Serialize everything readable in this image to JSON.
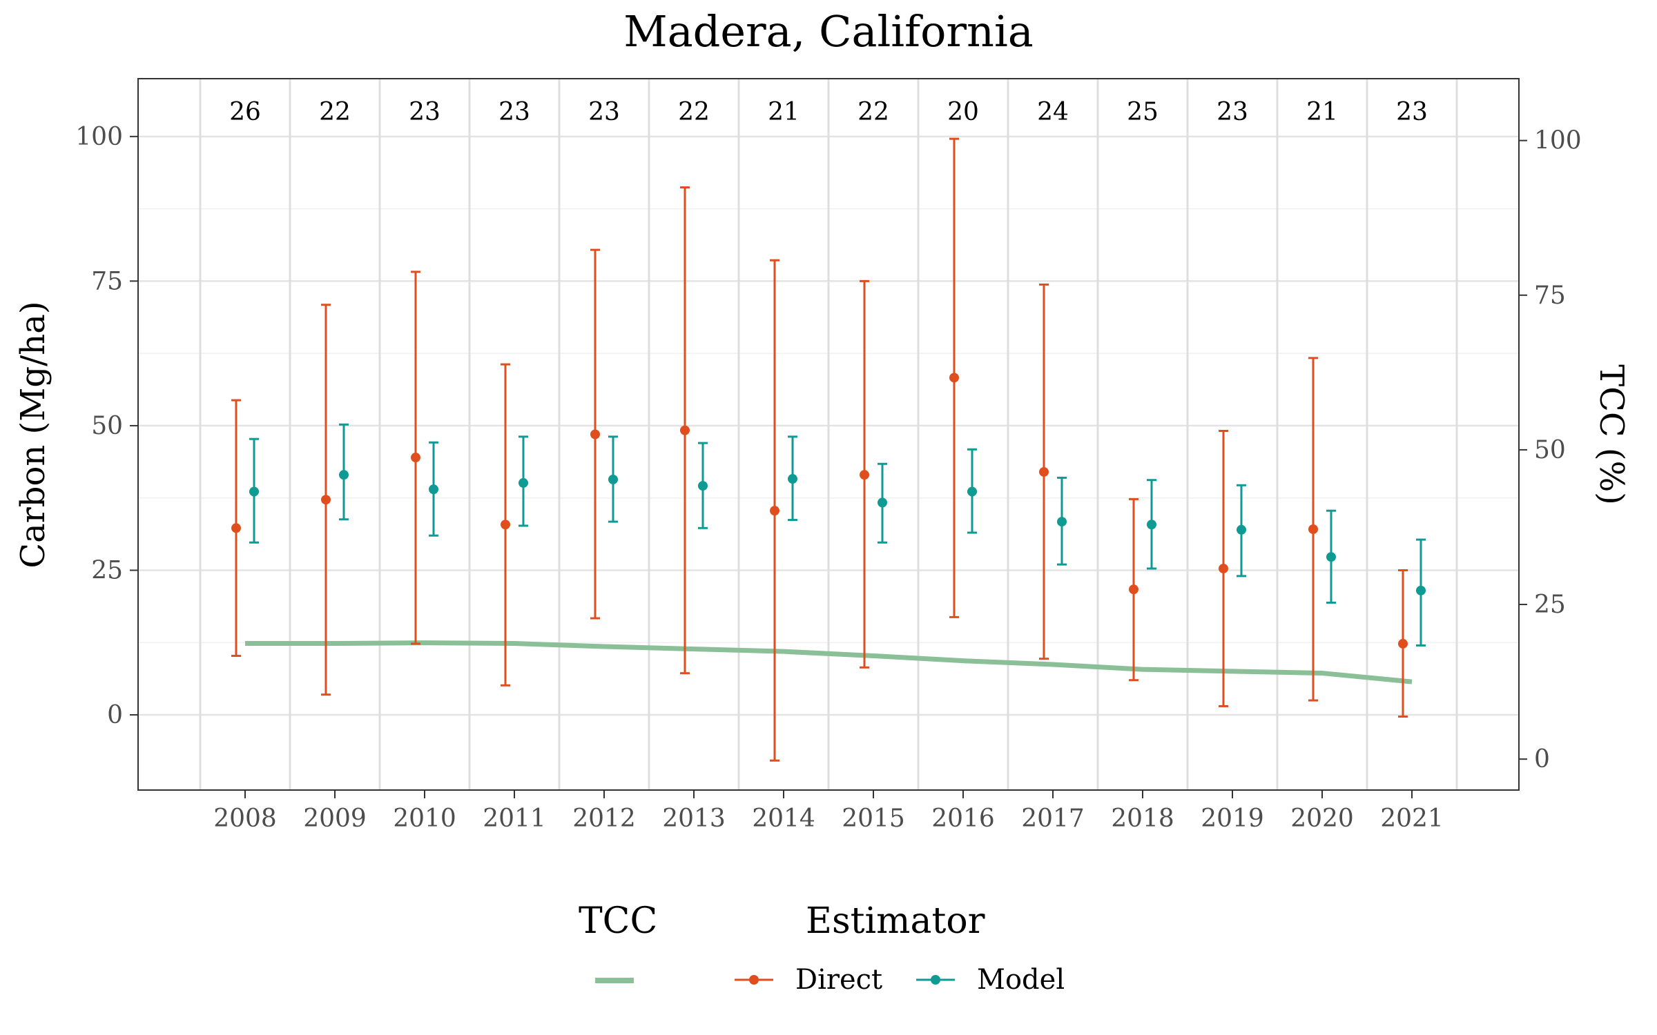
{
  "chart_data": {
    "type": "line",
    "title": "Madera, California",
    "xlabel": "",
    "ylabel": "Carbon (Mg/ha)",
    "y2label": "TCC (%)",
    "categories": [
      "2008",
      "2009",
      "2010",
      "2011",
      "2012",
      "2013",
      "2014",
      "2015",
      "2016",
      "2017",
      "2018",
      "2019",
      "2020",
      "2021"
    ],
    "ylim": [
      -13,
      110
    ],
    "yticks": [
      0,
      25,
      50,
      75,
      100
    ],
    "y2lim": [
      -5,
      110
    ],
    "y2ticks": [
      0,
      25,
      50,
      75,
      100
    ],
    "grid": true,
    "legend_position": "bottom",
    "counts": [
      26,
      22,
      23,
      23,
      23,
      22,
      21,
      22,
      20,
      24,
      25,
      23,
      21,
      23
    ],
    "series": [
      {
        "name": "Direct",
        "legend_group": "Estimator",
        "color": "#e04e1d",
        "kind": "pointrange",
        "values": [
          32.3,
          37.2,
          44.5,
          32.9,
          48.5,
          49.2,
          35.3,
          41.5,
          58.3,
          42.0,
          21.7,
          25.3,
          32.1,
          12.3
        ],
        "lower": [
          10.2,
          3.5,
          12.3,
          5.1,
          16.7,
          7.2,
          -7.9,
          8.2,
          16.9,
          9.7,
          6.0,
          1.5,
          2.5,
          -0.3
        ],
        "upper": [
          54.4,
          70.9,
          76.6,
          60.6,
          80.4,
          91.2,
          78.6,
          75.0,
          99.6,
          74.4,
          37.3,
          49.1,
          61.7,
          25.0
        ]
      },
      {
        "name": "Model",
        "legend_group": "Estimator",
        "color": "#0f9a94",
        "kind": "pointrange",
        "values": [
          38.6,
          41.5,
          39.0,
          40.1,
          40.7,
          39.6,
          40.8,
          36.7,
          38.6,
          33.4,
          32.9,
          32.0,
          27.3,
          21.5
        ],
        "lower": [
          29.8,
          33.8,
          31.0,
          32.7,
          33.4,
          32.3,
          33.7,
          29.8,
          31.5,
          26.0,
          25.3,
          24.0,
          19.4,
          12.0
        ],
        "upper": [
          47.7,
          50.2,
          47.1,
          48.1,
          48.1,
          47.0,
          48.1,
          43.4,
          45.9,
          41.0,
          40.6,
          39.7,
          35.3,
          30.3
        ]
      },
      {
        "name": "TCC",
        "legend_group": "TCC",
        "color": "#8bbf98",
        "kind": "line",
        "axis": "right",
        "values": [
          18.7,
          18.7,
          18.8,
          18.7,
          18.2,
          17.8,
          17.4,
          16.7,
          15.9,
          15.3,
          14.5,
          14.2,
          13.9,
          12.5
        ]
      }
    ],
    "legend": [
      {
        "title": "TCC",
        "entries": [
          {
            "label": "",
            "series": "TCC"
          }
        ]
      },
      {
        "title": "Estimator",
        "entries": [
          {
            "label": "Direct",
            "series": "Direct"
          },
          {
            "label": "Model",
            "series": "Model"
          }
        ]
      }
    ]
  }
}
